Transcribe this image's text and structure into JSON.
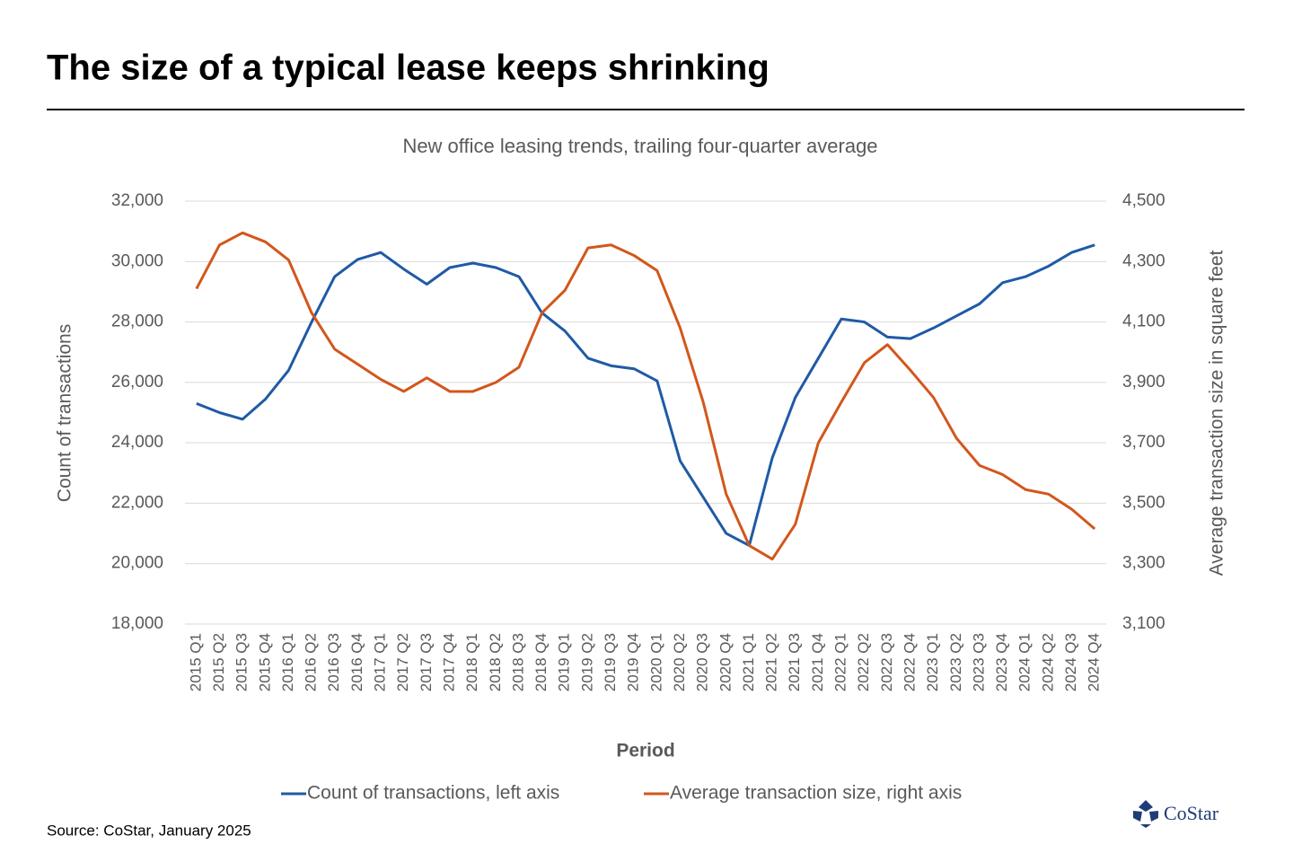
{
  "chart_data": {
    "type": "line",
    "title": "The size of a typical lease keeps shrinking",
    "subtitle": "New office leasing trends, trailing four-quarter average",
    "x_label": "Period",
    "y_label": "Count of transactions",
    "y2_label": "Average transaction size in square feet",
    "source": "Source: CoStar, January 2025",
    "logo": "CoStar",
    "categories": [
      "2015 Q1",
      "2015 Q2",
      "2015 Q3",
      "2015 Q4",
      "2016 Q1",
      "2016 Q2",
      "2016 Q3",
      "2016 Q4",
      "2017 Q1",
      "2017 Q2",
      "2017 Q3",
      "2017 Q4",
      "2018 Q1",
      "2018 Q2",
      "2018 Q3",
      "2018 Q4",
      "2019 Q1",
      "2019 Q2",
      "2019 Q3",
      "2019 Q4",
      "2020 Q1",
      "2020 Q2",
      "2020 Q3",
      "2020 Q4",
      "2021 Q1",
      "2021 Q2",
      "2021 Q3",
      "2021 Q4",
      "2022 Q1",
      "2022 Q2",
      "2022 Q3",
      "2022 Q4",
      "2023 Q1",
      "2023 Q2",
      "2023 Q3",
      "2023 Q4",
      "2024 Q1",
      "2024 Q2",
      "2024 Q3",
      "2024 Q4"
    ],
    "series": [
      {
        "name": "Count of transactions, left axis",
        "color": "#1f5aa6",
        "axis": "y",
        "values": [
          25300,
          25000,
          24780,
          25450,
          26400,
          28000,
          29500,
          30070,
          30300,
          29750,
          29250,
          29800,
          29950,
          29800,
          29500,
          28300,
          27700,
          26800,
          26550,
          26450,
          26050,
          23400,
          22200,
          21000,
          20600,
          23500,
          25500,
          26800,
          28100,
          28000,
          27500,
          27450,
          27800,
          28200,
          28600,
          29300,
          29500,
          29850,
          30300,
          30550
        ]
      },
      {
        "name": "Average transaction size, right axis",
        "color": "#d2571b",
        "axis": "y2",
        "values": [
          4210,
          4355,
          4395,
          4365,
          4305,
          4130,
          4010,
          3960,
          3910,
          3870,
          3915,
          3870,
          3870,
          3900,
          3950,
          4130,
          4205,
          4345,
          4355,
          4320,
          4270,
          4080,
          3835,
          3530,
          3360,
          3315,
          3430,
          3700,
          3835,
          3965,
          4025,
          3940,
          3850,
          3715,
          3625,
          3595,
          3545,
          3530,
          3480,
          3415
        ]
      }
    ],
    "ylim": [
      18000,
      32000
    ],
    "yticks": [
      {
        "value": 18000,
        "label": "18,000"
      },
      {
        "value": 20000,
        "label": "20,000"
      },
      {
        "value": 22000,
        "label": "22,000"
      },
      {
        "value": 24000,
        "label": "24,000"
      },
      {
        "value": 26000,
        "label": "26,000"
      },
      {
        "value": 28000,
        "label": "28,000"
      },
      {
        "value": 30000,
        "label": "30,000"
      },
      {
        "value": 32000,
        "label": "32,000"
      }
    ],
    "y2lim": [
      3100,
      4500
    ],
    "y2ticks": [
      {
        "value": 3100,
        "label": "3,100"
      },
      {
        "value": 3300,
        "label": "3,300"
      },
      {
        "value": 3500,
        "label": "3,500"
      },
      {
        "value": 3700,
        "label": "3,700"
      },
      {
        "value": 3900,
        "label": "3,900"
      },
      {
        "value": 4100,
        "label": "4,100"
      },
      {
        "value": 4300,
        "label": "4,300"
      },
      {
        "value": 4500,
        "label": "4,500"
      }
    ],
    "grid": true,
    "legend": "bottom"
  }
}
